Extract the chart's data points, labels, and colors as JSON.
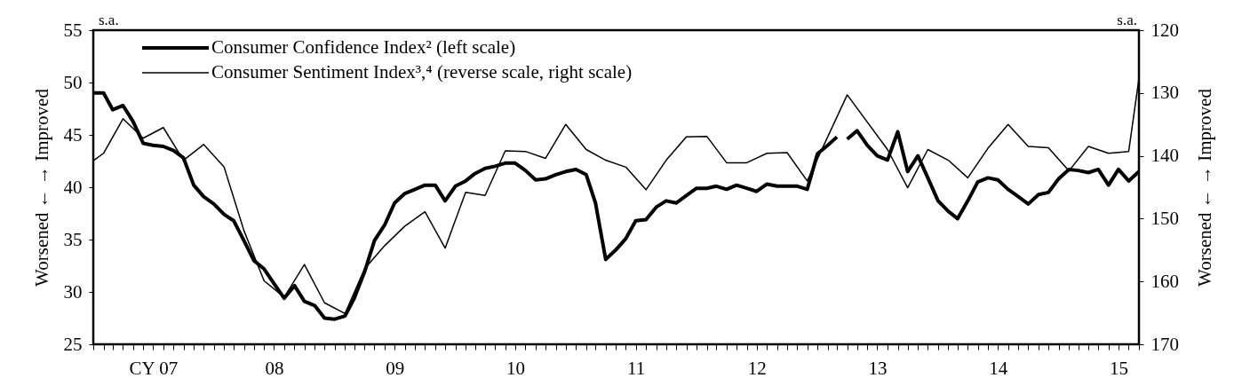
{
  "chart_data": {
    "type": "line",
    "ylabel": "Worsened  ←    →  Improved",
    "y2label": "Worsened  ←    →  Improved",
    "annotations": [
      "s.a.",
      "s.a."
    ],
    "legend": "top left",
    "xlim": [
      "2007-01",
      "2015-09"
    ],
    "ylim": [
      25,
      55
    ],
    "yticks": [
      25,
      30,
      35,
      40,
      45,
      50,
      55
    ],
    "y2lim": [
      170,
      120
    ],
    "y2ticks": [
      120,
      130,
      140,
      150,
      160,
      170
    ],
    "line_style": "solid",
    "marker": "none",
    "xticks": [
      {
        "value": "2007-01",
        "label": null
      },
      {
        "value": "2007-02",
        "label": null
      },
      {
        "value": "2007-03",
        "label": null
      },
      {
        "value": "2007-04",
        "label": null
      },
      {
        "value": "2007-05",
        "label": null
      },
      {
        "value": "2007-06",
        "label": null
      },
      {
        "value": "2007-07",
        "label": "CY 07"
      },
      {
        "value": "2007-08",
        "label": null
      },
      {
        "value": "2007-09",
        "label": null
      },
      {
        "value": "2007-10",
        "label": null
      },
      {
        "value": "2007-11",
        "label": null
      },
      {
        "value": "2007-12",
        "label": null
      },
      {
        "value": "2008-01",
        "label": null
      },
      {
        "value": "2008-02",
        "label": null
      },
      {
        "value": "2008-03",
        "label": null
      },
      {
        "value": "2008-04",
        "label": null
      },
      {
        "value": "2008-05",
        "label": null
      },
      {
        "value": "2008-06",
        "label": null
      },
      {
        "value": "2008-07",
        "label": "08"
      },
      {
        "value": "2008-08",
        "label": null
      },
      {
        "value": "2008-09",
        "label": null
      },
      {
        "value": "2008-10",
        "label": null
      },
      {
        "value": "2008-11",
        "label": null
      },
      {
        "value": "2008-12",
        "label": null
      },
      {
        "value": "2009-01",
        "label": null
      },
      {
        "value": "2009-02",
        "label": null
      },
      {
        "value": "2009-03",
        "label": null
      },
      {
        "value": "2009-04",
        "label": null
      },
      {
        "value": "2009-05",
        "label": null
      },
      {
        "value": "2009-06",
        "label": null
      },
      {
        "value": "2009-07",
        "label": "09"
      },
      {
        "value": "2009-08",
        "label": null
      },
      {
        "value": "2009-09",
        "label": null
      },
      {
        "value": "2009-10",
        "label": null
      },
      {
        "value": "2009-11",
        "label": null
      },
      {
        "value": "2009-12",
        "label": null
      },
      {
        "value": "2010-01",
        "label": null
      },
      {
        "value": "2010-02",
        "label": null
      },
      {
        "value": "2010-03",
        "label": null
      },
      {
        "value": "2010-04",
        "label": null
      },
      {
        "value": "2010-05",
        "label": null
      },
      {
        "value": "2010-06",
        "label": null
      },
      {
        "value": "2010-07",
        "label": "10"
      },
      {
        "value": "2010-08",
        "label": null
      },
      {
        "value": "2010-09",
        "label": null
      },
      {
        "value": "2010-10",
        "label": null
      },
      {
        "value": "2010-11",
        "label": null
      },
      {
        "value": "2010-12",
        "label": null
      },
      {
        "value": "2011-01",
        "label": null
      },
      {
        "value": "2011-02",
        "label": null
      },
      {
        "value": "2011-03",
        "label": null
      },
      {
        "value": "2011-04",
        "label": null
      },
      {
        "value": "2011-05",
        "label": null
      },
      {
        "value": "2011-06",
        "label": null
      },
      {
        "value": "2011-07",
        "label": "11"
      },
      {
        "value": "2011-08",
        "label": null
      },
      {
        "value": "2011-09",
        "label": null
      },
      {
        "value": "2011-10",
        "label": null
      },
      {
        "value": "2011-11",
        "label": null
      },
      {
        "value": "2011-12",
        "label": null
      },
      {
        "value": "2012-01",
        "label": null
      },
      {
        "value": "2012-02",
        "label": null
      },
      {
        "value": "2012-03",
        "label": null
      },
      {
        "value": "2012-04",
        "label": null
      },
      {
        "value": "2012-05",
        "label": null
      },
      {
        "value": "2012-06",
        "label": null
      },
      {
        "value": "2012-07",
        "label": "12"
      },
      {
        "value": "2012-08",
        "label": null
      },
      {
        "value": "2012-09",
        "label": null
      },
      {
        "value": "2012-10",
        "label": null
      },
      {
        "value": "2012-11",
        "label": null
      },
      {
        "value": "2012-12",
        "label": null
      },
      {
        "value": "2013-01",
        "label": null
      },
      {
        "value": "2013-02",
        "label": null
      },
      {
        "value": "2013-03",
        "label": null
      },
      {
        "value": "2013-04",
        "label": null
      },
      {
        "value": "2013-05",
        "label": null
      },
      {
        "value": "2013-06",
        "label": null
      },
      {
        "value": "2013-07",
        "label": "13"
      },
      {
        "value": "2013-08",
        "label": null
      },
      {
        "value": "2013-09",
        "label": null
      },
      {
        "value": "2013-10",
        "label": null
      },
      {
        "value": "2013-11",
        "label": null
      },
      {
        "value": "2013-12",
        "label": null
      },
      {
        "value": "2014-01",
        "label": null
      },
      {
        "value": "2014-02",
        "label": null
      },
      {
        "value": "2014-03",
        "label": null
      },
      {
        "value": "2014-04",
        "label": null
      },
      {
        "value": "2014-05",
        "label": null
      },
      {
        "value": "2014-06",
        "label": null
      },
      {
        "value": "2014-07",
        "label": "14"
      },
      {
        "value": "2014-08",
        "label": null
      },
      {
        "value": "2014-09",
        "label": null
      },
      {
        "value": "2014-10",
        "label": null
      },
      {
        "value": "2014-11",
        "label": null
      },
      {
        "value": "2014-12",
        "label": null
      },
      {
        "value": "2015-01",
        "label": null
      },
      {
        "value": "2015-02",
        "label": null
      },
      {
        "value": "2015-03",
        "label": null
      },
      {
        "value": "2015-04",
        "label": null
      },
      {
        "value": "2015-05",
        "label": null
      },
      {
        "value": "2015-06",
        "label": null
      },
      {
        "value": "2015-07",
        "label": "15"
      },
      {
        "value": "2015-08",
        "label": null
      },
      {
        "value": "2015-09",
        "label": null
      }
    ],
    "series": [
      {
        "name": "Consumer Confidence Index² (left scale)",
        "color": "#000000",
        "x": [
          "2007-01",
          "2007-02",
          "2007-03",
          "2007-04",
          "2007-05",
          "2007-06",
          "2007-07",
          "2007-08",
          "2007-09",
          "2007-10",
          "2007-11",
          "2007-12",
          "2008-01",
          "2008-02",
          "2008-03",
          "2008-04",
          "2008-05",
          "2008-06",
          "2008-07",
          "2008-08",
          "2008-09",
          "2008-10",
          "2008-11",
          "2008-12",
          "2009-01",
          "2009-02",
          "2009-03",
          "2009-04",
          "2009-05",
          "2009-06",
          "2009-07",
          "2009-08",
          "2009-09",
          "2009-10",
          "2009-11",
          "2009-12",
          "2010-01",
          "2010-02",
          "2010-03",
          "2010-04",
          "2010-05",
          "2010-06",
          "2010-07",
          "2010-08",
          "2010-09",
          "2010-10",
          "2010-11",
          "2010-12",
          "2011-01",
          "2011-02",
          "2011-03",
          "2011-04",
          "2011-05",
          "2011-06",
          "2011-07",
          "2011-08",
          "2011-09",
          "2011-10",
          "2011-11",
          "2011-12",
          "2012-01",
          "2012-02",
          "2012-03",
          "2012-04",
          "2012-05",
          "2012-06",
          "2012-07",
          "2012-08",
          "2012-09",
          "2012-10",
          "2012-11",
          "2012-12",
          "2013-01",
          "2013-02",
          "2013-03"
        ],
        "values": [
          49.0,
          49.0,
          47.4,
          47.8,
          46.3,
          44.2,
          44.0,
          43.9,
          43.5,
          42.8,
          40.2,
          39.1,
          38.4,
          37.4,
          36.8,
          34.9,
          33.0,
          32.2,
          30.8,
          29.4,
          30.6,
          29.1,
          28.7,
          27.5,
          27.4,
          27.7,
          29.4,
          31.9,
          34.9,
          36.4,
          38.5,
          39.4,
          39.8,
          40.2,
          40.2,
          38.7,
          40.1,
          40.6,
          41.3,
          41.8,
          42.0,
          42.3,
          42.3,
          41.6,
          40.7,
          40.8,
          41.2,
          41.5,
          41.7,
          41.2,
          38.5,
          33.1,
          34.0,
          35.1,
          36.8,
          36.9,
          38.1,
          38.7,
          38.5,
          39.2,
          39.9,
          39.9,
          40.1,
          39.8,
          40.2,
          39.9,
          39.6,
          40.3,
          40.1,
          40.1,
          40.1,
          39.8,
          43.2,
          44.0,
          44.8
        ]
      },
      {
        "color": "#000000",
        "x": [
          "2013-04",
          "2013-05",
          "2013-06",
          "2013-07",
          "2013-08",
          "2013-09",
          "2013-10",
          "2013-11",
          "2013-12",
          "2014-01",
          "2014-02",
          "2014-03",
          "2014-04",
          "2014-05",
          "2014-06",
          "2014-07",
          "2014-08",
          "2014-09",
          "2014-10",
          "2014-11",
          "2014-12",
          "2015-01",
          "2015-02",
          "2015-03",
          "2015-04",
          "2015-05",
          "2015-06",
          "2015-07",
          "2015-08",
          "2015-09"
        ],
        "values": [
          44.6,
          45.4,
          44.0,
          43.0,
          42.6,
          45.3,
          41.5,
          43.0,
          40.9,
          38.7,
          37.7,
          37.0,
          38.7,
          40.5,
          40.9,
          40.7,
          39.8,
          39.1,
          38.4,
          39.3,
          39.5,
          40.8,
          41.7,
          41.6,
          41.4,
          41.7,
          40.2,
          41.7,
          40.6,
          41.5
        ]
      },
      {
        "name": "Consumer Sentiment Index³,⁴ (reverse scale, right scale)",
        "color": "#000000",
        "axis": "y2",
        "x": [
          "2007-01",
          "2007-02",
          "2007-04",
          "2007-06",
          "2007-08",
          "2007-10",
          "2007-12",
          "2008-02",
          "2008-04",
          "2008-06",
          "2008-08",
          "2008-10",
          "2008-12",
          "2009-02",
          "2009-04",
          "2009-06",
          "2009-08",
          "2009-10",
          "2009-12",
          "2010-02",
          "2010-04",
          "2010-06",
          "2010-08",
          "2010-10",
          "2010-12",
          "2011-02",
          "2011-04",
          "2011-06",
          "2011-08",
          "2011-10",
          "2011-12",
          "2012-02",
          "2012-04",
          "2012-06",
          "2012-08",
          "2012-10",
          "2012-12",
          "2013-04",
          "2013-08",
          "2013-10",
          "2013-12",
          "2014-02",
          "2014-04",
          "2014-06",
          "2014-08",
          "2014-10",
          "2014-12",
          "2015-02",
          "2015-04",
          "2015-06",
          "2015-08",
          "2015-09"
        ],
        "values": [
          140.8,
          139.6,
          134.1,
          137.2,
          135.5,
          140.7,
          138.2,
          141.8,
          151.9,
          159.9,
          162.5,
          157.3,
          163.4,
          165.1,
          158.0,
          154.3,
          151.2,
          148.9,
          154.7,
          145.8,
          146.3,
          139.2,
          139.3,
          140.4,
          135.0,
          139.0,
          140.7,
          141.8,
          145.4,
          140.7,
          137.0,
          136.9,
          141.1,
          141.1,
          139.6,
          139.5,
          144.0,
          130.3,
          139.0,
          145.1,
          139.0,
          140.7,
          143.5,
          138.8,
          135.0,
          138.5,
          138.7,
          142.4,
          138.5,
          139.6,
          139.3,
          127.7
        ]
      }
    ]
  }
}
